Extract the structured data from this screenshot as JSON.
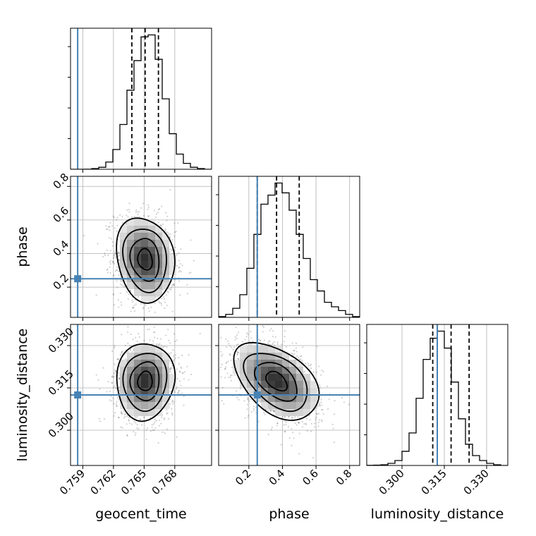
{
  "chart_data": {
    "type": "corner",
    "parameters": [
      "geocent_time",
      "phase",
      "luminosity_distance"
    ],
    "truths": {
      "geocent_time": 0.7585,
      "phase": 0.25,
      "luminosity_distance": 0.3125
    },
    "truth_color": "#4682b4",
    "ranges": {
      "geocent_time": [
        0.7578,
        0.7716
      ],
      "phase": [
        0.02,
        0.86
      ],
      "luminosity_distance": [
        0.2875,
        0.3375
      ]
    },
    "tick_labels": {
      "geocent_time": [
        "0.759",
        "0.762",
        "0.765",
        "0.768"
      ],
      "phase": [
        "0.2",
        "0.4",
        "0.6",
        "0.8"
      ],
      "luminosity_distance": [
        "0.300",
        "0.315",
        "0.330"
      ]
    },
    "tick_values": {
      "geocent_time": [
        0.759,
        0.762,
        0.765,
        0.768
      ],
      "phase": [
        0.2,
        0.4,
        0.6,
        0.8
      ],
      "luminosity_distance": [
        0.3,
        0.315,
        0.33
      ]
    },
    "quantiles": {
      "geocent_time": [
        0.7638,
        0.7651,
        0.7664
      ],
      "phase": [
        0.25,
        0.365,
        0.5
      ],
      "luminosity_distance": [
        0.3109,
        0.3174,
        0.3238
      ]
    },
    "histograms": {
      "geocent_time": [
        0,
        0,
        0.1,
        1,
        3,
        11,
        30,
        68,
        120,
        165,
        201,
        204,
        167,
        107,
        54,
        23,
        9,
        3,
        1,
        0
      ],
      "phase": [
        1,
        4,
        12,
        30,
        65,
        110,
        150,
        162,
        178,
        165,
        142,
        110,
        78,
        50,
        35,
        20,
        14,
        9,
        4,
        1
      ],
      "luminosity_distance": [
        0.2,
        0.5,
        1,
        3,
        7,
        20,
        46,
        95,
        150,
        180,
        190,
        166,
        118,
        66,
        30,
        14,
        7,
        3,
        1,
        0
      ]
    },
    "grid": true,
    "levels_note": "2D panels: density contours (0.5, 1, 1.5, 2 sigma) over grayscale density and scatter points"
  }
}
